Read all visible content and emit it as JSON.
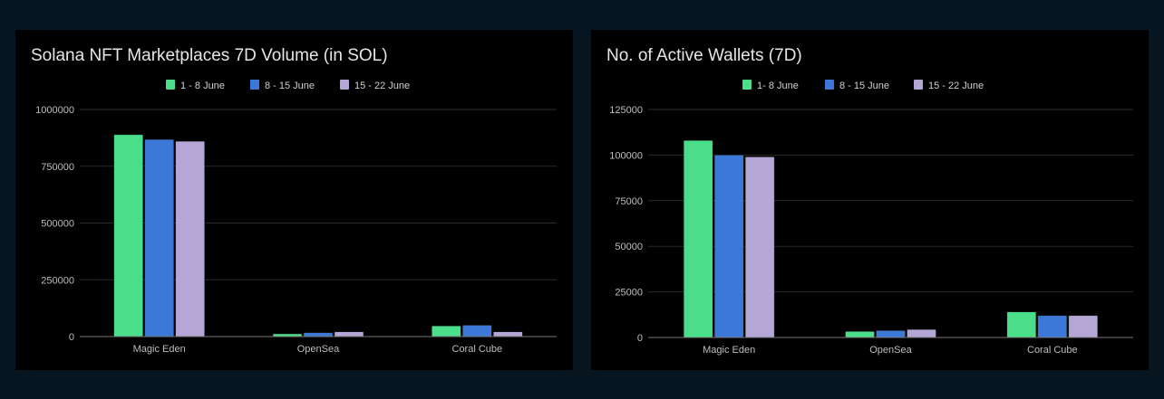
{
  "chart_data": [
    {
      "type": "bar",
      "title": "Solana NFT Marketplaces 7D Volume (in SOL)",
      "categories": [
        "Magic Eden",
        "OpenSea",
        "Coral Cube"
      ],
      "series": [
        {
          "name": "1 - 8 June",
          "color": "#4ade8a",
          "values": [
            889000,
            12000,
            47000
          ]
        },
        {
          "name": "8 - 15 June",
          "color": "#3b78d8",
          "values": [
            868000,
            17000,
            50000
          ]
        },
        {
          "name": "15 - 22 June",
          "color": "#b4a7d6",
          "values": [
            860000,
            21000,
            21000
          ]
        }
      ],
      "yticks": [
        "0",
        "250000",
        "500000",
        "750000",
        "1000000"
      ],
      "ylim": [
        0,
        1000000
      ],
      "xlabel": "",
      "ylabel": "",
      "grid": true,
      "legend": "top-center"
    },
    {
      "type": "bar",
      "title": "No. of Active Wallets (7D)",
      "categories": [
        "Magic Eden",
        "OpenSea",
        "Coral Cube"
      ],
      "series": [
        {
          "name": "1- 8 June",
          "color": "#4ade8a",
          "values": [
            108000,
            3300,
            14000
          ]
        },
        {
          "name": "8 - 15 June",
          "color": "#3b78d8",
          "values": [
            100000,
            3800,
            12000
          ]
        },
        {
          "name": "15 - 22 June",
          "color": "#b4a7d6",
          "values": [
            99000,
            4400,
            12000
          ]
        }
      ],
      "yticks": [
        "0",
        "25000",
        "50000",
        "75000",
        "100000",
        "125000"
      ],
      "ylim": [
        0,
        125000
      ],
      "xlabel": "",
      "ylabel": "",
      "grid": true,
      "legend": "top-center"
    }
  ]
}
